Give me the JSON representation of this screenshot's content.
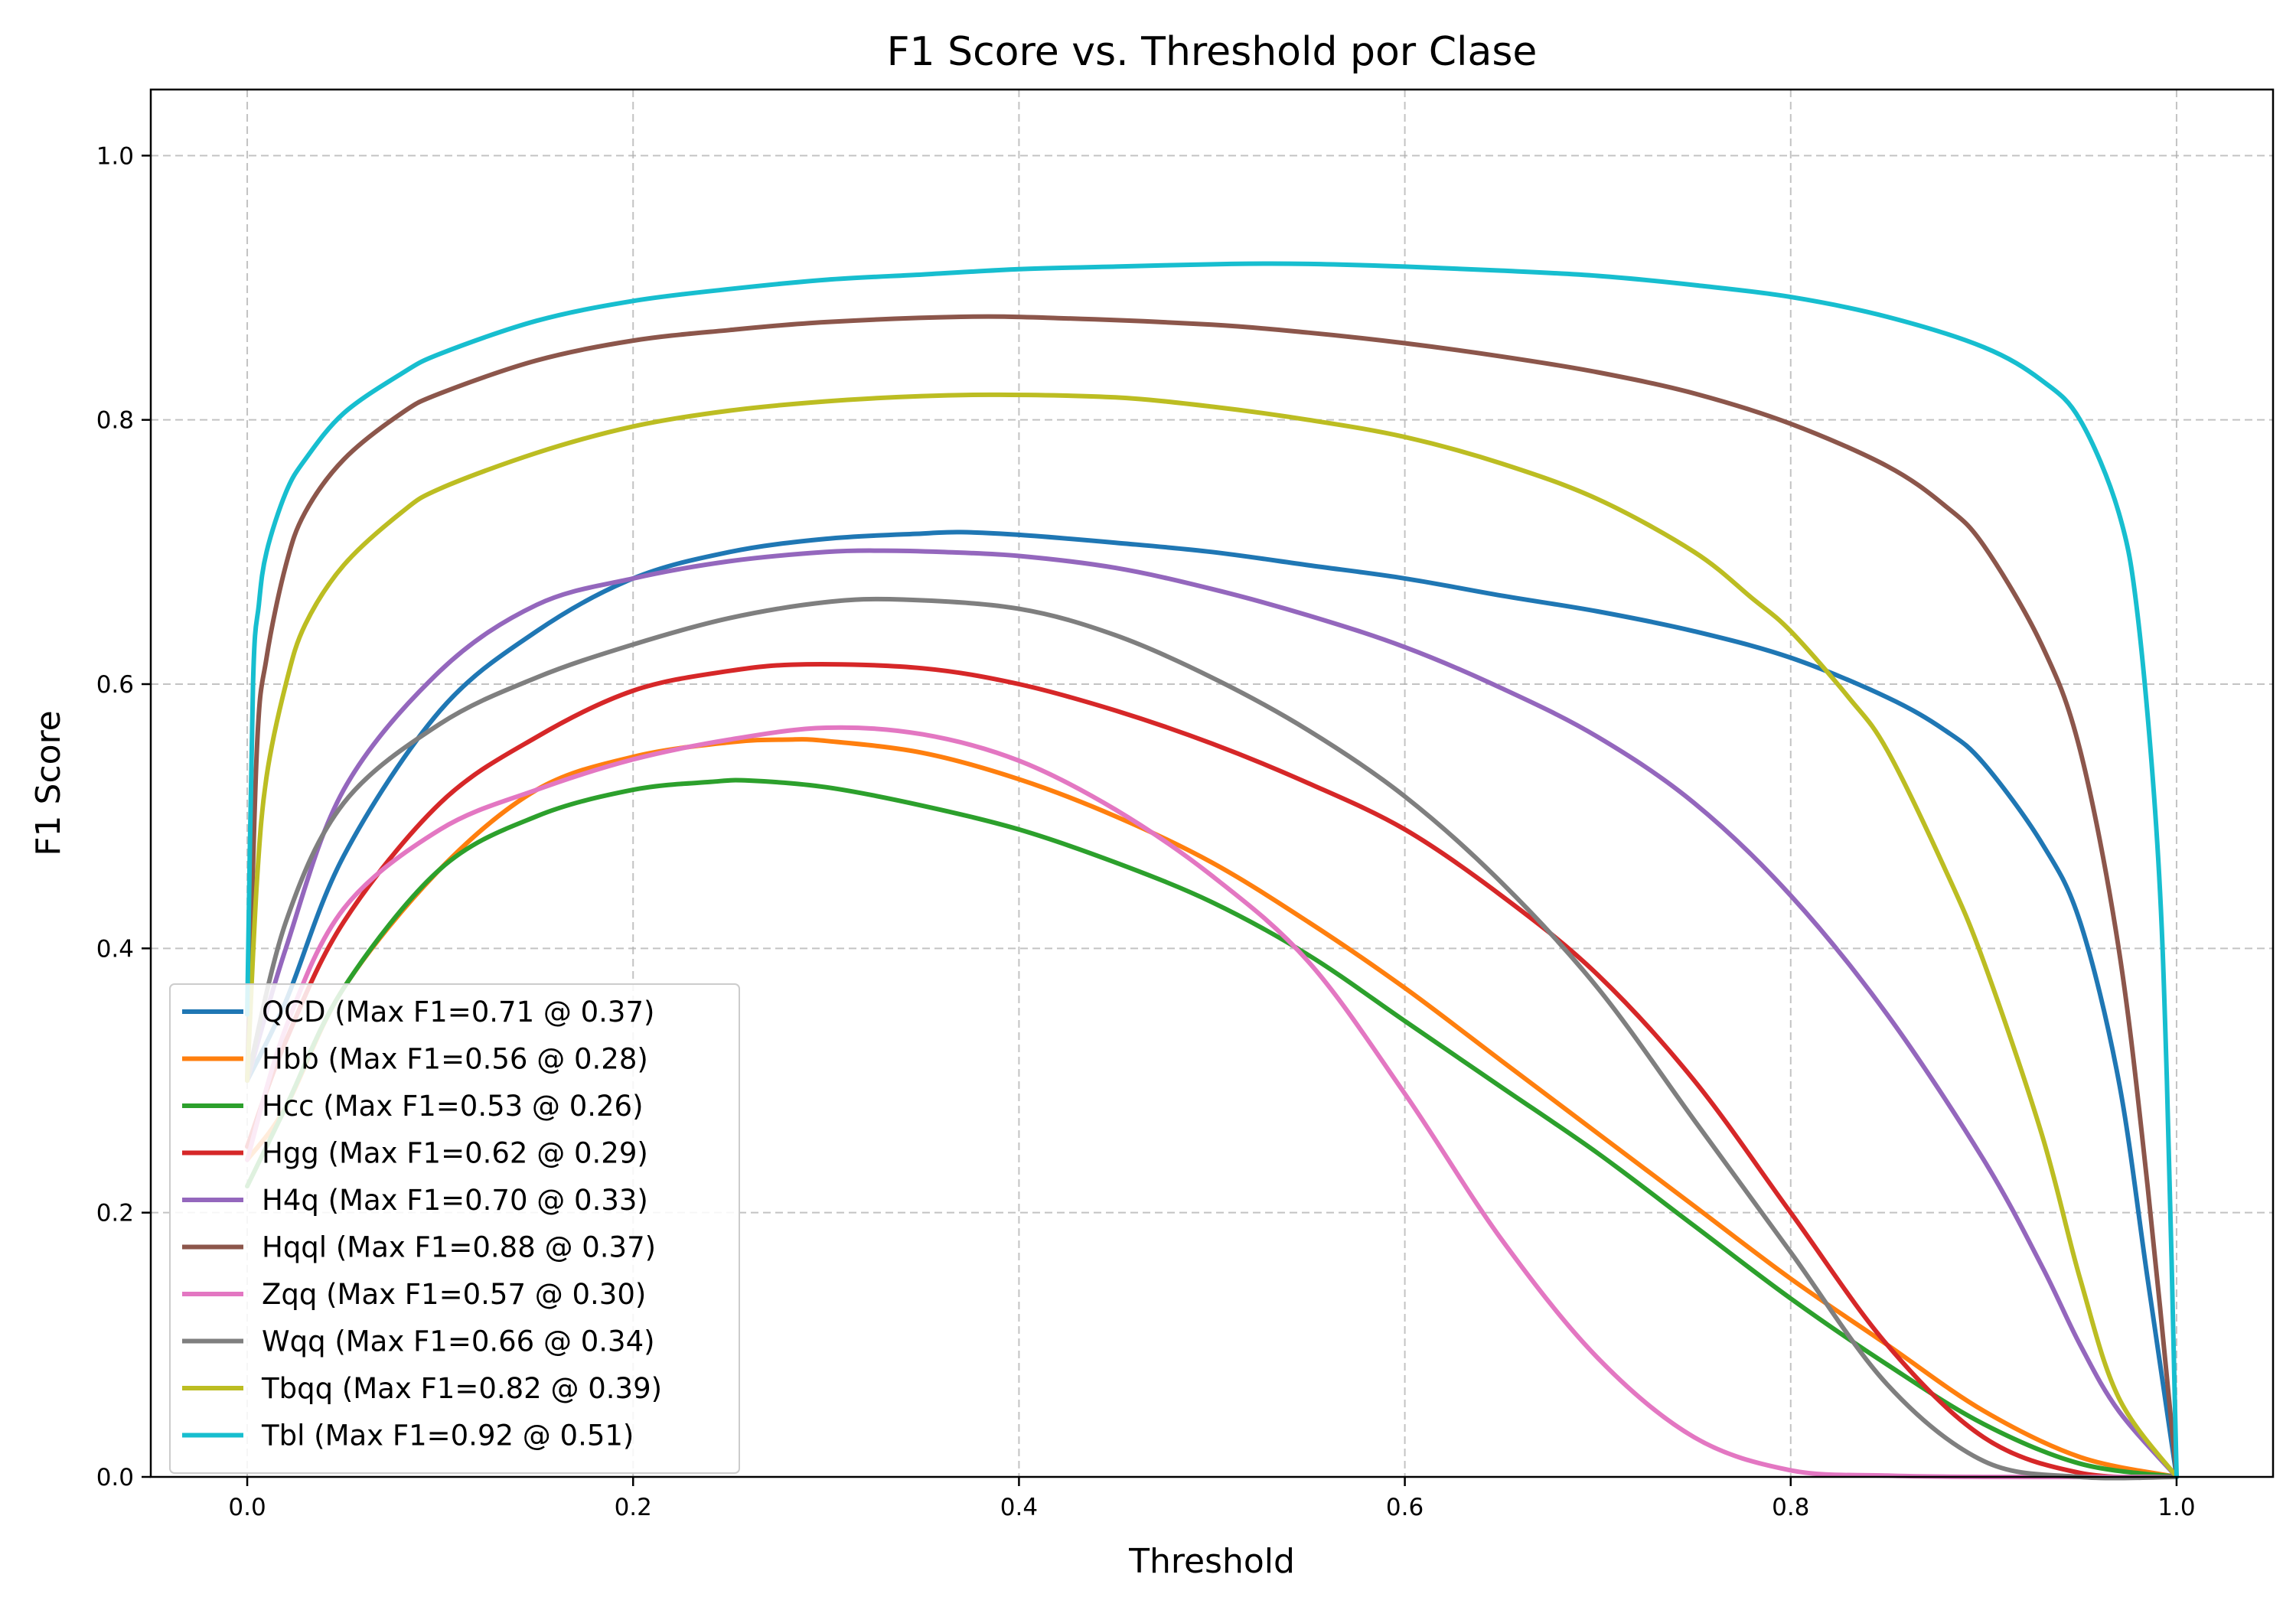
{
  "chart_data": {
    "type": "line",
    "title": "F1 Score vs. Threshold por Clase",
    "xlabel": "Threshold",
    "ylabel": "F1 Score",
    "xlim": [
      -0.05,
      1.05
    ],
    "ylim": [
      0.0,
      1.05
    ],
    "xticks": [
      0.0,
      0.2,
      0.4,
      0.6,
      0.8,
      1.0
    ],
    "yticks": [
      0.0,
      0.2,
      0.4,
      0.6,
      0.8,
      1.0
    ],
    "xtick_labels": [
      "0.0",
      "0.2",
      "0.4",
      "0.6",
      "0.8",
      "1.0"
    ],
    "ytick_labels": [
      "0.0",
      "0.2",
      "0.4",
      "0.6",
      "0.8",
      "1.0"
    ],
    "grid": true,
    "legend_position": "lower-left",
    "series": [
      {
        "name": "QCD (Max F1=0.71 @ 0.37)",
        "color": "#1f77b4",
        "points": [
          [
            0.0,
            0.3
          ],
          [
            0.02,
            0.36
          ],
          [
            0.05,
            0.47
          ],
          [
            0.1,
            0.58
          ],
          [
            0.15,
            0.64
          ],
          [
            0.2,
            0.68
          ],
          [
            0.25,
            0.7
          ],
          [
            0.3,
            0.71
          ],
          [
            0.35,
            0.714
          ],
          [
            0.37,
            0.715
          ],
          [
            0.4,
            0.713
          ],
          [
            0.45,
            0.707
          ],
          [
            0.5,
            0.7
          ],
          [
            0.55,
            0.69
          ],
          [
            0.6,
            0.68
          ],
          [
            0.65,
            0.667
          ],
          [
            0.7,
            0.655
          ],
          [
            0.75,
            0.64
          ],
          [
            0.8,
            0.62
          ],
          [
            0.85,
            0.59
          ],
          [
            0.88,
            0.565
          ],
          [
            0.9,
            0.54
          ],
          [
            0.93,
            0.48
          ],
          [
            0.95,
            0.42
          ],
          [
            0.97,
            0.3
          ],
          [
            0.985,
            0.15
          ],
          [
            1.0,
            0.0
          ]
        ]
      },
      {
        "name": "Hbb (Max F1=0.56 @ 0.28)",
        "color": "#ff7f0e",
        "points": [
          [
            0.0,
            0.24
          ],
          [
            0.02,
            0.28
          ],
          [
            0.05,
            0.37
          ],
          [
            0.1,
            0.46
          ],
          [
            0.15,
            0.52
          ],
          [
            0.2,
            0.545
          ],
          [
            0.25,
            0.556
          ],
          [
            0.28,
            0.558
          ],
          [
            0.3,
            0.557
          ],
          [
            0.35,
            0.548
          ],
          [
            0.4,
            0.528
          ],
          [
            0.45,
            0.5
          ],
          [
            0.5,
            0.465
          ],
          [
            0.55,
            0.42
          ],
          [
            0.6,
            0.37
          ],
          [
            0.65,
            0.315
          ],
          [
            0.7,
            0.26
          ],
          [
            0.75,
            0.205
          ],
          [
            0.8,
            0.15
          ],
          [
            0.85,
            0.1
          ],
          [
            0.9,
            0.05
          ],
          [
            0.95,
            0.015
          ],
          [
            1.0,
            0.0
          ]
        ]
      },
      {
        "name": "Hcc (Max F1=0.53 @ 0.26)",
        "color": "#2ca02c",
        "points": [
          [
            0.0,
            0.22
          ],
          [
            0.02,
            0.28
          ],
          [
            0.05,
            0.37
          ],
          [
            0.1,
            0.46
          ],
          [
            0.15,
            0.5
          ],
          [
            0.2,
            0.52
          ],
          [
            0.24,
            0.526
          ],
          [
            0.26,
            0.527
          ],
          [
            0.3,
            0.522
          ],
          [
            0.35,
            0.508
          ],
          [
            0.4,
            0.49
          ],
          [
            0.45,
            0.465
          ],
          [
            0.5,
            0.435
          ],
          [
            0.55,
            0.395
          ],
          [
            0.6,
            0.345
          ],
          [
            0.65,
            0.295
          ],
          [
            0.7,
            0.245
          ],
          [
            0.75,
            0.19
          ],
          [
            0.8,
            0.135
          ],
          [
            0.85,
            0.085
          ],
          [
            0.9,
            0.04
          ],
          [
            0.95,
            0.01
          ],
          [
            1.0,
            0.0
          ]
        ]
      },
      {
        "name": "Hgg (Max F1=0.62 @ 0.29)",
        "color": "#d62728",
        "points": [
          [
            0.0,
            0.25
          ],
          [
            0.02,
            0.33
          ],
          [
            0.05,
            0.42
          ],
          [
            0.1,
            0.51
          ],
          [
            0.15,
            0.56
          ],
          [
            0.2,
            0.595
          ],
          [
            0.25,
            0.61
          ],
          [
            0.29,
            0.615
          ],
          [
            0.35,
            0.612
          ],
          [
            0.4,
            0.6
          ],
          [
            0.45,
            0.58
          ],
          [
            0.5,
            0.555
          ],
          [
            0.55,
            0.525
          ],
          [
            0.6,
            0.49
          ],
          [
            0.65,
            0.44
          ],
          [
            0.7,
            0.38
          ],
          [
            0.75,
            0.3
          ],
          [
            0.8,
            0.2
          ],
          [
            0.85,
            0.1
          ],
          [
            0.9,
            0.03
          ],
          [
            0.95,
            0.003
          ],
          [
            1.0,
            0.0
          ]
        ]
      },
      {
        "name": "H4q (Max F1=0.70 @ 0.33)",
        "color": "#9467bd",
        "points": [
          [
            0.0,
            0.3
          ],
          [
            0.02,
            0.4
          ],
          [
            0.05,
            0.52
          ],
          [
            0.1,
            0.61
          ],
          [
            0.15,
            0.66
          ],
          [
            0.2,
            0.68
          ],
          [
            0.25,
            0.693
          ],
          [
            0.3,
            0.7
          ],
          [
            0.33,
            0.701
          ],
          [
            0.36,
            0.7
          ],
          [
            0.4,
            0.697
          ],
          [
            0.45,
            0.688
          ],
          [
            0.5,
            0.672
          ],
          [
            0.55,
            0.652
          ],
          [
            0.6,
            0.628
          ],
          [
            0.65,
            0.597
          ],
          [
            0.7,
            0.56
          ],
          [
            0.75,
            0.51
          ],
          [
            0.8,
            0.44
          ],
          [
            0.85,
            0.35
          ],
          [
            0.9,
            0.24
          ],
          [
            0.93,
            0.16
          ],
          [
            0.95,
            0.1
          ],
          [
            0.97,
            0.05
          ],
          [
            1.0,
            0.0
          ]
        ]
      },
      {
        "name": "Hqql (Max F1=0.88 @ 0.37)",
        "color": "#8c564b",
        "points": [
          [
            0.0,
            0.3
          ],
          [
            0.005,
            0.55
          ],
          [
            0.01,
            0.62
          ],
          [
            0.02,
            0.69
          ],
          [
            0.03,
            0.73
          ],
          [
            0.05,
            0.77
          ],
          [
            0.08,
            0.805
          ],
          [
            0.1,
            0.82
          ],
          [
            0.15,
            0.845
          ],
          [
            0.2,
            0.86
          ],
          [
            0.25,
            0.868
          ],
          [
            0.3,
            0.874
          ],
          [
            0.37,
            0.878
          ],
          [
            0.42,
            0.877
          ],
          [
            0.5,
            0.872
          ],
          [
            0.55,
            0.866
          ],
          [
            0.6,
            0.858
          ],
          [
            0.65,
            0.848
          ],
          [
            0.7,
            0.836
          ],
          [
            0.75,
            0.82
          ],
          [
            0.8,
            0.797
          ],
          [
            0.85,
            0.765
          ],
          [
            0.88,
            0.735
          ],
          [
            0.9,
            0.705
          ],
          [
            0.93,
            0.63
          ],
          [
            0.95,
            0.55
          ],
          [
            0.97,
            0.4
          ],
          [
            0.985,
            0.22
          ],
          [
            1.0,
            0.0
          ]
        ]
      },
      {
        "name": "Zqq (Max F1=0.57 @ 0.30)",
        "color": "#e377c2",
        "points": [
          [
            0.0,
            0.24
          ],
          [
            0.02,
            0.34
          ],
          [
            0.05,
            0.43
          ],
          [
            0.1,
            0.49
          ],
          [
            0.15,
            0.52
          ],
          [
            0.2,
            0.543
          ],
          [
            0.25,
            0.558
          ],
          [
            0.3,
            0.567
          ],
          [
            0.35,
            0.562
          ],
          [
            0.4,
            0.542
          ],
          [
            0.45,
            0.505
          ],
          [
            0.5,
            0.455
          ],
          [
            0.55,
            0.39
          ],
          [
            0.6,
            0.29
          ],
          [
            0.65,
            0.18
          ],
          [
            0.7,
            0.09
          ],
          [
            0.75,
            0.03
          ],
          [
            0.8,
            0.005
          ],
          [
            0.85,
            0.001
          ],
          [
            0.9,
            0.0
          ],
          [
            1.0,
            0.0
          ]
        ]
      },
      {
        "name": "Wqq (Max F1=0.66 @ 0.34)",
        "color": "#7f7f7f",
        "points": [
          [
            0.0,
            0.3
          ],
          [
            0.02,
            0.42
          ],
          [
            0.05,
            0.51
          ],
          [
            0.1,
            0.57
          ],
          [
            0.15,
            0.605
          ],
          [
            0.2,
            0.63
          ],
          [
            0.25,
            0.65
          ],
          [
            0.3,
            0.662
          ],
          [
            0.34,
            0.664
          ],
          [
            0.4,
            0.657
          ],
          [
            0.45,
            0.637
          ],
          [
            0.5,
            0.605
          ],
          [
            0.55,
            0.565
          ],
          [
            0.6,
            0.515
          ],
          [
            0.65,
            0.45
          ],
          [
            0.7,
            0.37
          ],
          [
            0.75,
            0.27
          ],
          [
            0.8,
            0.17
          ],
          [
            0.85,
            0.07
          ],
          [
            0.9,
            0.012
          ],
          [
            0.95,
            0.0
          ],
          [
            1.0,
            0.0
          ]
        ]
      },
      {
        "name": "Tbqq (Max F1=0.82 @ 0.39)",
        "color": "#bcbd22",
        "points": [
          [
            0.0,
            0.3
          ],
          [
            0.005,
            0.45
          ],
          [
            0.01,
            0.53
          ],
          [
            0.02,
            0.6
          ],
          [
            0.03,
            0.645
          ],
          [
            0.05,
            0.69
          ],
          [
            0.08,
            0.73
          ],
          [
            0.1,
            0.748
          ],
          [
            0.15,
            0.775
          ],
          [
            0.2,
            0.795
          ],
          [
            0.25,
            0.807
          ],
          [
            0.3,
            0.814
          ],
          [
            0.35,
            0.818
          ],
          [
            0.39,
            0.819
          ],
          [
            0.45,
            0.817
          ],
          [
            0.5,
            0.81
          ],
          [
            0.55,
            0.8
          ],
          [
            0.6,
            0.787
          ],
          [
            0.65,
            0.767
          ],
          [
            0.7,
            0.74
          ],
          [
            0.75,
            0.7
          ],
          [
            0.78,
            0.665
          ],
          [
            0.8,
            0.64
          ],
          [
            0.83,
            0.59
          ],
          [
            0.85,
            0.55
          ],
          [
            0.88,
            0.46
          ],
          [
            0.9,
            0.39
          ],
          [
            0.93,
            0.26
          ],
          [
            0.95,
            0.15
          ],
          [
            0.97,
            0.06
          ],
          [
            1.0,
            0.0
          ]
        ]
      },
      {
        "name": "Tbl (Max F1=0.92 @ 0.51)",
        "color": "#17becf",
        "points": [
          [
            0.0,
            0.35
          ],
          [
            0.003,
            0.6
          ],
          [
            0.006,
            0.66
          ],
          [
            0.01,
            0.7
          ],
          [
            0.02,
            0.745
          ],
          [
            0.03,
            0.77
          ],
          [
            0.05,
            0.805
          ],
          [
            0.08,
            0.835
          ],
          [
            0.1,
            0.85
          ],
          [
            0.15,
            0.875
          ],
          [
            0.2,
            0.89
          ],
          [
            0.25,
            0.899
          ],
          [
            0.3,
            0.906
          ],
          [
            0.35,
            0.91
          ],
          [
            0.4,
            0.914
          ],
          [
            0.45,
            0.916
          ],
          [
            0.51,
            0.918
          ],
          [
            0.55,
            0.918
          ],
          [
            0.6,
            0.916
          ],
          [
            0.65,
            0.913
          ],
          [
            0.7,
            0.909
          ],
          [
            0.75,
            0.902
          ],
          [
            0.8,
            0.893
          ],
          [
            0.85,
            0.878
          ],
          [
            0.9,
            0.855
          ],
          [
            0.93,
            0.83
          ],
          [
            0.95,
            0.8
          ],
          [
            0.97,
            0.73
          ],
          [
            0.98,
            0.65
          ],
          [
            0.99,
            0.48
          ],
          [
            0.995,
            0.3
          ],
          [
            1.0,
            0.0
          ]
        ]
      }
    ]
  }
}
